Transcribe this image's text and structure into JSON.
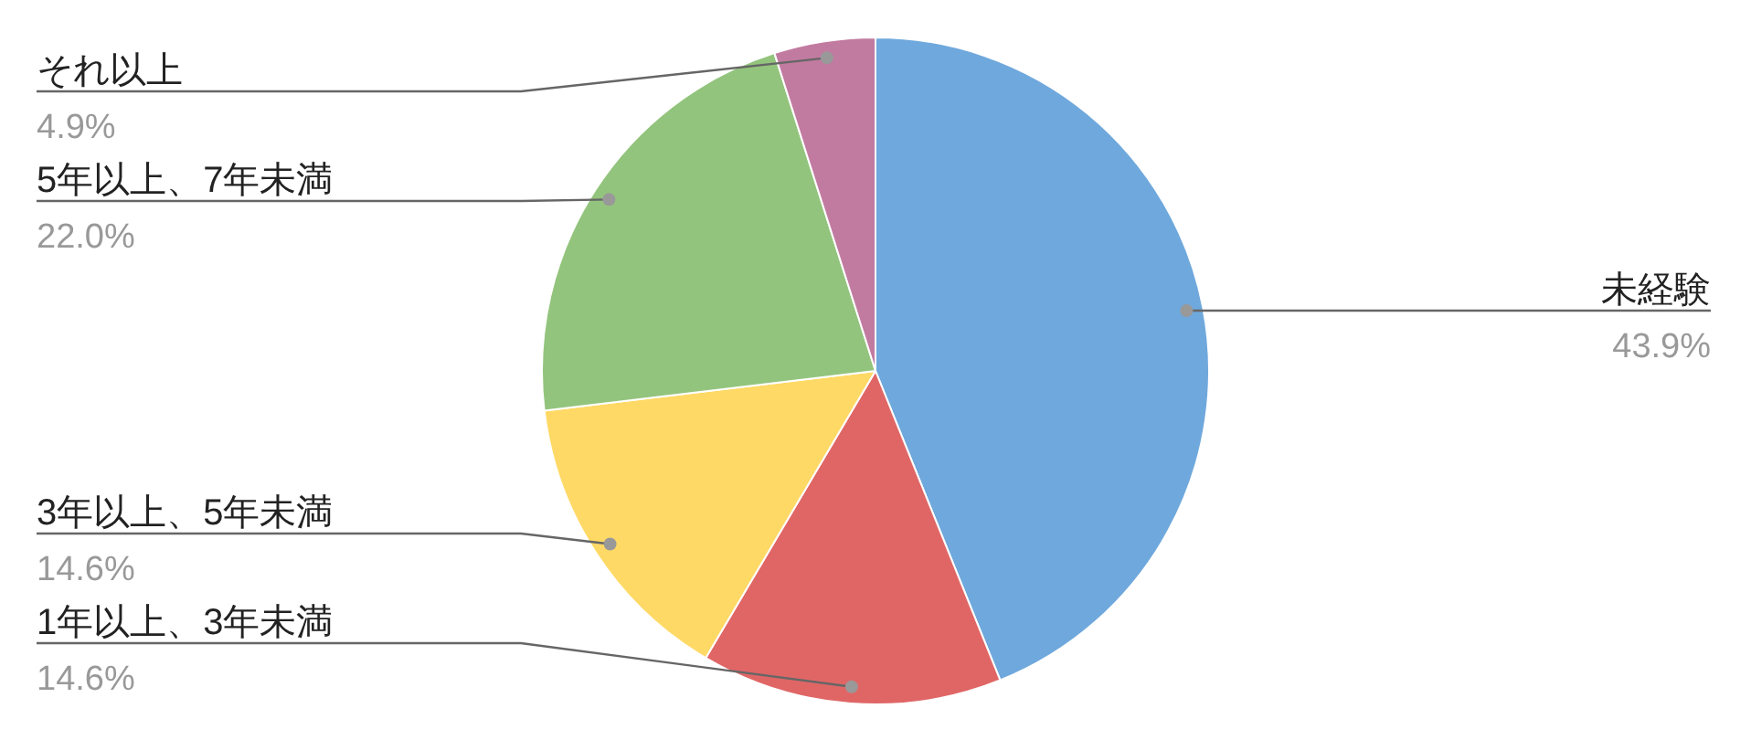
{
  "chart_data": {
    "type": "pie",
    "categories": [
      "未経験",
      "1年以上、3年未満",
      "3年以上、5年未満",
      "5年以上、7年未満",
      "それ以上"
    ],
    "values": [
      43.9,
      14.6,
      14.6,
      22.0,
      4.9
    ],
    "colors": [
      "#6fa8dc",
      "#e06666",
      "#ffd966",
      "#93c47d",
      "#c27ba0"
    ],
    "value_labels": [
      "43.9%",
      "14.6%",
      "14.6%",
      "22.0%",
      "4.9%"
    ],
    "legend": false
  }
}
